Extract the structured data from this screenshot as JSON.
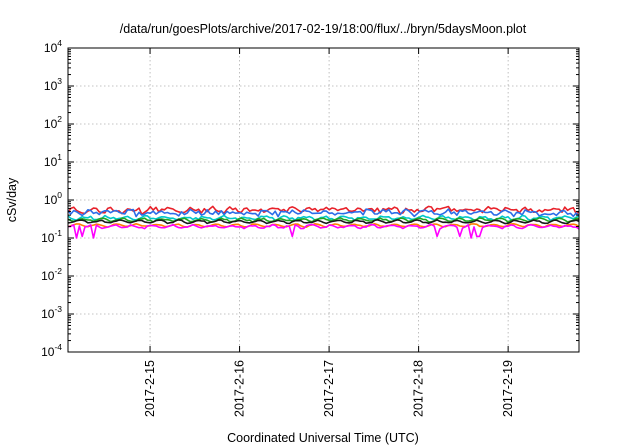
{
  "chart_data": {
    "type": "line",
    "title": "/data/run/goesPlots/archive/2017-02-19/18:00/flux/../bryn/5daysMoon.plot",
    "xlabel": "Coordinated Universal Time (UTC)",
    "ylabel": "cSv/day",
    "y_scale": "log",
    "ylim": [
      0.0001,
      10000
    ],
    "y_ticks": [
      {
        "value": 0.0001,
        "base": "10",
        "exp": "-4"
      },
      {
        "value": 0.001,
        "base": "10",
        "exp": "-3"
      },
      {
        "value": 0.01,
        "base": "10",
        "exp": "-2"
      },
      {
        "value": 0.1,
        "base": "10",
        "exp": "-1"
      },
      {
        "value": 1,
        "base": "10",
        "exp": "0"
      },
      {
        "value": 10,
        "base": "10",
        "exp": "1"
      },
      {
        "value": 100,
        "base": "10",
        "exp": "2"
      },
      {
        "value": 1000,
        "base": "10",
        "exp": "3"
      },
      {
        "value": 10000,
        "base": "10",
        "exp": "4"
      }
    ],
    "xlim": [
      "2017-02-14T02:00",
      "2017-02-19T19:00"
    ],
    "x_ticks": [
      {
        "label": "2017-2-15",
        "value": "2017-02-15T00:00"
      },
      {
        "label": "2017-2-16",
        "value": "2017-02-16T00:00"
      },
      {
        "label": "2017-2-17",
        "value": "2017-02-17T00:00"
      },
      {
        "label": "2017-2-18",
        "value": "2017-02-18T00:00"
      },
      {
        "label": "2017-2-19",
        "value": "2017-02-19T00:00"
      }
    ],
    "grid": true,
    "legend": "none",
    "series": [
      {
        "color": "#e8212a",
        "level": 0.55,
        "variation": 0.16,
        "dips": []
      },
      {
        "color": "#2b6de8",
        "level": 0.47,
        "variation": 0.18,
        "dips": []
      },
      {
        "color": "#00c8c8",
        "level": 0.34,
        "variation": 0.08,
        "dips": []
      },
      {
        "color": "#22a822",
        "level": 0.3,
        "variation": 0.05,
        "dips": []
      },
      {
        "color": "#1a1a1a",
        "level": 0.27,
        "variation": 0.04,
        "dips": []
      },
      {
        "color": "#ff7f00",
        "level": 0.215,
        "variation": 0.03,
        "dips": []
      },
      {
        "color": "#ff00ff",
        "level": 0.2,
        "variation": 0.06,
        "dips": [
          {
            "time": "2017-02-14T04:00",
            "value": 0.1
          },
          {
            "time": "2017-02-14T06:00",
            "value": 0.11
          },
          {
            "time": "2017-02-14T09:00",
            "value": 0.1
          },
          {
            "time": "2017-02-16T14:00",
            "value": 0.11
          },
          {
            "time": "2017-02-18T05:00",
            "value": 0.11
          },
          {
            "time": "2017-02-18T11:00",
            "value": 0.11
          },
          {
            "time": "2017-02-18T14:00",
            "value": 0.1
          },
          {
            "time": "2017-02-18T16:00",
            "value": 0.11
          }
        ]
      }
    ]
  }
}
